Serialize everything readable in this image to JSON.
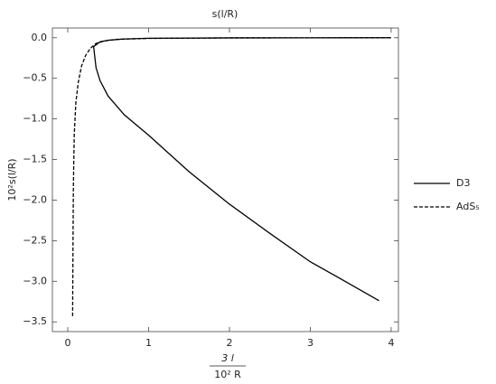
{
  "chart_data": {
    "type": "line",
    "title": "s(l/R)",
    "ylabel": "10²s(l/R)",
    "xlabel_numerator": "3 l",
    "xlabel_denominator": "10² R",
    "xlim": [
      -0.19,
      4.09
    ],
    "ylim": [
      -3.62,
      0.12
    ],
    "xticks": [
      0,
      1,
      2,
      3,
      4
    ],
    "yticks": [
      {
        "value": 0,
        "label": "0.0"
      },
      {
        "value": -0.5,
        "label": "−0.5"
      },
      {
        "value": -1,
        "label": "−1.0"
      },
      {
        "value": -1.5,
        "label": "−1.5"
      },
      {
        "value": -2,
        "label": "−2.0"
      },
      {
        "value": -2.5,
        "label": "−2.5"
      },
      {
        "value": -3,
        "label": "−3.0"
      },
      {
        "value": -3.5,
        "label": "−3.5"
      }
    ],
    "legend": "right",
    "series": [
      {
        "name": "D3",
        "color": "#000000",
        "dash": "solid",
        "x": [
          3.85,
          3.5,
          3,
          2.5,
          2,
          1.5,
          1,
          0.7,
          0.5,
          0.4,
          0.35,
          0.32,
          0.4,
          0.5,
          0.7,
          1,
          2,
          3,
          4
        ],
        "values": [
          -3.24,
          -3.04,
          -2.76,
          -2.41,
          -2.05,
          -1.65,
          -1.2,
          -0.95,
          -0.72,
          -0.53,
          -0.37,
          -0.11,
          -0.05,
          -0.03,
          -0.015,
          -0.007,
          -0.002,
          -0.001,
          0
        ]
      },
      {
        "name": "AdS₅",
        "color": "#000000",
        "dash": "dashed",
        "x": [
          0.06,
          0.065,
          0.07,
          0.08,
          0.1,
          0.13,
          0.17,
          0.22,
          0.28,
          0.35,
          0.45,
          0.6,
          1,
          2,
          4
        ],
        "values": [
          -3.43,
          -2.5,
          -1.8,
          -1.2,
          -0.8,
          -0.55,
          -0.35,
          -0.22,
          -0.13,
          -0.07,
          -0.04,
          -0.02,
          -0.008,
          -0.002,
          0
        ]
      }
    ]
  }
}
